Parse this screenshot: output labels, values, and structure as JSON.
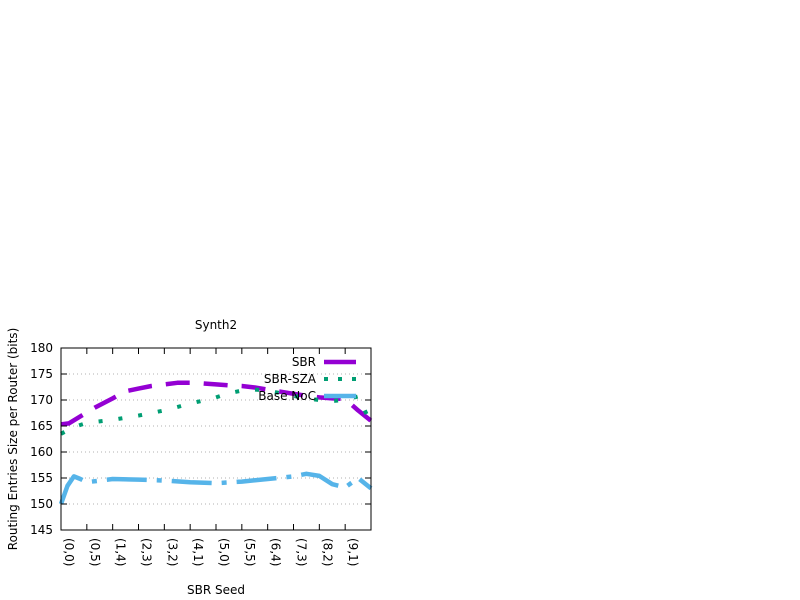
{
  "chart_data": {
    "type": "line",
    "title": "Synth2",
    "xlabel": "SBR Seed",
    "ylabel": "Routing Entries Size per Router (bits)",
    "ylim": [
      145,
      180
    ],
    "yticks": [
      145,
      150,
      155,
      160,
      165,
      170,
      175,
      180
    ],
    "xlim": [
      0,
      12
    ],
    "xticks": [
      "(0,0)",
      "(0,5)",
      "(1,4)",
      "(2,3)",
      "(3,2)",
      "(4,1)",
      "(5,0)",
      "(5,5)",
      "(6,4)",
      "(7,3)",
      "(8,2)",
      "(9,1)"
    ],
    "grid": true,
    "legend_position": "top-right",
    "series": [
      {
        "name": "SBR",
        "color": "#9400d3",
        "style": "dashed",
        "x": [
          0,
          0.3,
          0.8,
          1.3,
          2.0,
          2.5,
          3.0,
          3.5,
          4.0,
          4.5,
          5.0,
          5.5,
          6.0,
          6.5,
          7.0,
          7.5,
          8.0,
          8.5,
          9.0,
          9.5,
          10.0,
          10.5,
          11.0,
          11.5,
          12.0
        ],
        "values": [
          165.3,
          165.5,
          167.0,
          168.5,
          170.3,
          171.7,
          172.2,
          172.7,
          173.0,
          173.3,
          173.3,
          173.2,
          173.0,
          172.8,
          172.7,
          172.4,
          172.0,
          171.6,
          171.2,
          170.8,
          170.5,
          170.3,
          170.2,
          168.0,
          166.0
        ]
      },
      {
        "name": "SBR-SZA",
        "color": "#009e73",
        "style": "dotted",
        "x": [
          0,
          0.5,
          1,
          2,
          3,
          4,
          5,
          6,
          6.5,
          7,
          7.5,
          8,
          8.5,
          9,
          9.5,
          10,
          10.5,
          11,
          11.5,
          12
        ],
        "values": [
          163.5,
          164.8,
          165.6,
          166.2,
          167.0,
          168.0,
          169.3,
          170.5,
          171.3,
          171.8,
          172.0,
          171.8,
          171.3,
          170.8,
          170.3,
          170.0,
          169.8,
          170.0,
          170.7,
          165.5
        ]
      },
      {
        "name": "Base NoC",
        "color": "#56b4e9",
        "style": "dash-dot",
        "x": [
          0,
          0.25,
          0.5,
          0.75,
          1,
          1.5,
          2,
          3,
          4,
          5,
          6,
          7,
          8,
          9,
          9.5,
          10,
          10.5,
          11,
          11.5,
          12
        ],
        "values": [
          150,
          153.5,
          155.3,
          154.8,
          154.2,
          154.5,
          154.8,
          154.7,
          154.5,
          154.2,
          154.0,
          154.3,
          154.8,
          155.3,
          155.8,
          155.4,
          153.8,
          153.2,
          155.0,
          153.0
        ]
      }
    ]
  }
}
